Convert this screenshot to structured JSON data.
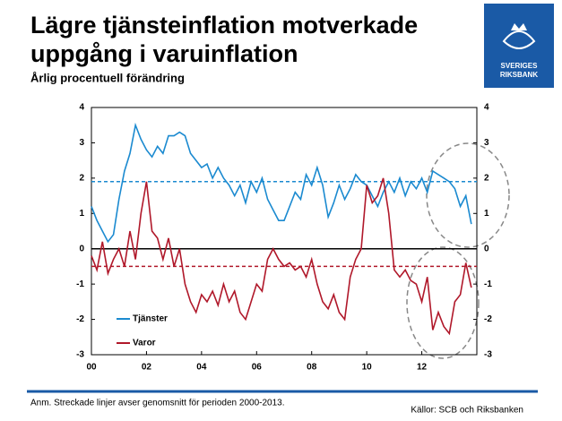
{
  "chart_data": {
    "type": "line",
    "title": [
      "Lägre tjänsteinflation motverkade",
      "uppgång i varuinflation"
    ],
    "subtitle": "Årlig procentuell förändring",
    "note": "Anm. Streckade linjer avser genomsnitt för perioden 2000-2013.",
    "source": "Källor: SCB och Riksbanken",
    "logo_text": [
      "SVERIGES",
      "RIKSBANK"
    ],
    "x": [
      2000,
      2000.2,
      2000.4,
      2000.6,
      2000.8,
      2001,
      2001.2,
      2001.4,
      2001.6,
      2001.8,
      2002,
      2002.2,
      2002.4,
      2002.6,
      2002.8,
      2003,
      2003.2,
      2003.4,
      2003.6,
      2003.8,
      2004,
      2004.2,
      2004.4,
      2004.6,
      2004.8,
      2005,
      2005.2,
      2005.4,
      2005.6,
      2005.8,
      2006,
      2006.2,
      2006.4,
      2006.6,
      2006.8,
      2007,
      2007.2,
      2007.4,
      2007.6,
      2007.8,
      2008,
      2008.2,
      2008.4,
      2008.6,
      2008.8,
      2009,
      2009.2,
      2009.4,
      2009.6,
      2009.8,
      2010,
      2010.2,
      2010.4,
      2010.6,
      2010.8,
      2011,
      2011.2,
      2011.4,
      2011.6,
      2011.8,
      2012,
      2012.2,
      2012.4,
      2012.6,
      2012.8,
      2013,
      2013.2,
      2013.4,
      2013.6,
      2013.8
    ],
    "series": [
      {
        "name": "Tjänster",
        "color": "#1b8ad0",
        "values": [
          1.2,
          0.8,
          0.5,
          0.2,
          0.4,
          1.4,
          2.2,
          2.7,
          3.5,
          3.1,
          2.8,
          2.6,
          2.9,
          2.7,
          3.2,
          3.2,
          3.3,
          3.2,
          2.7,
          2.5,
          2.3,
          2.4,
          2.0,
          2.3,
          2.0,
          1.8,
          1.5,
          1.8,
          1.3,
          1.9,
          1.6,
          2.0,
          1.4,
          1.1,
          0.8,
          0.8,
          1.2,
          1.6,
          1.4,
          2.1,
          1.8,
          2.3,
          1.8,
          0.9,
          1.3,
          1.8,
          1.4,
          1.7,
          2.1,
          1.9,
          1.8,
          1.5,
          1.2,
          1.6,
          1.9,
          1.6,
          2.0,
          1.5,
          1.9,
          1.7,
          2.0,
          1.6,
          2.2,
          2.1,
          2.0,
          1.9,
          1.7,
          1.2,
          1.5,
          0.7
        ]
      },
      {
        "name": "Varor",
        "color": "#b0182a",
        "values": [
          -0.2,
          -0.6,
          0.2,
          -0.7,
          -0.3,
          0.0,
          -0.5,
          0.5,
          -0.3,
          1.0,
          1.9,
          0.5,
          0.3,
          -0.3,
          0.3,
          -0.5,
          0.0,
          -1.0,
          -1.5,
          -1.8,
          -1.3,
          -1.5,
          -1.2,
          -1.6,
          -1.0,
          -1.5,
          -1.2,
          -1.8,
          -2.0,
          -1.5,
          -1.0,
          -1.2,
          -0.3,
          0.0,
          -0.3,
          -0.5,
          -0.4,
          -0.6,
          -0.5,
          -0.8,
          -0.3,
          -1.0,
          -1.5,
          -1.7,
          -1.3,
          -1.8,
          -2.0,
          -0.8,
          -0.3,
          0.0,
          1.8,
          1.3,
          1.5,
          2.0,
          1.0,
          -0.6,
          -0.8,
          -0.6,
          -0.9,
          -1.0,
          -1.5,
          -0.8,
          -2.3,
          -1.8,
          -2.2,
          -2.4,
          -1.5,
          -1.3,
          -0.4,
          -1.1
        ]
      }
    ],
    "reference_lines": [
      {
        "value": 1.9,
        "color": "#1b8ad0"
      },
      {
        "value": -0.5,
        "color": "#b0182a"
      }
    ],
    "xlim": [
      2000,
      2014
    ],
    "xticks": [
      {
        "value": 2000,
        "label": "00"
      },
      {
        "value": 2002,
        "label": "02"
      },
      {
        "value": 2004,
        "label": "04"
      },
      {
        "value": 2006,
        "label": "06"
      },
      {
        "value": 2008,
        "label": "08"
      },
      {
        "value": 2010,
        "label": "10"
      },
      {
        "value": 2012,
        "label": "12"
      }
    ],
    "ylim": [
      -3,
      4
    ],
    "yticks": [
      -3,
      -2,
      -1,
      0,
      1,
      2,
      3,
      4
    ],
    "y2lim": [
      -3,
      4
    ],
    "y2ticks": [
      -3,
      -2,
      -1,
      0,
      1,
      2,
      3,
      4
    ],
    "grid": false
  }
}
